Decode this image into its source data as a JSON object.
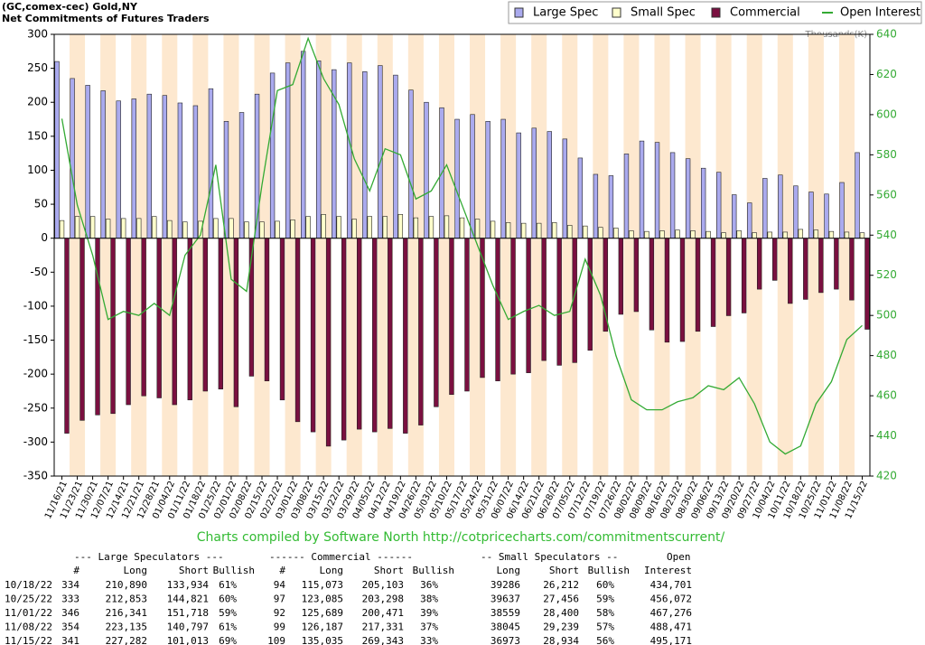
{
  "chart_data": {
    "type": "bar",
    "title": "(GC,comex-cec) Gold,NY",
    "subtitle": "Net Commitments of Futures Traders",
    "y2_label": "Thousands(K)",
    "credit": "Charts compiled by Software North  http://cotpricecharts.com/commitmentscurrent/",
    "legend": "top-right",
    "categories": [
      "11/16/21",
      "11/23/21",
      "11/30/21",
      "12/07/21",
      "12/14/21",
      "12/21/21",
      "12/28/21",
      "01/04/22",
      "01/11/22",
      "01/18/22",
      "01/25/22",
      "02/01/22",
      "02/08/22",
      "02/15/22",
      "02/22/22",
      "03/01/22",
      "03/08/22",
      "03/15/22",
      "03/22/22",
      "03/29/22",
      "04/05/22",
      "04/12/22",
      "04/19/22",
      "04/26/22",
      "05/03/22",
      "05/10/22",
      "05/17/22",
      "05/24/22",
      "05/31/22",
      "06/07/22",
      "06/14/22",
      "06/21/22",
      "06/28/22",
      "07/05/22",
      "07/12/22",
      "07/19/22",
      "07/26/22",
      "08/02/22",
      "08/09/22",
      "08/16/22",
      "08/23/22",
      "08/30/22",
      "09/06/22",
      "09/13/22",
      "09/20/22",
      "09/27/22",
      "10/04/22",
      "10/11/22",
      "10/18/22",
      "10/25/22",
      "11/01/22",
      "11/08/22",
      "11/15/22"
    ],
    "series": [
      {
        "name": "Large Spec",
        "type": "bar",
        "color": "#aaaaee",
        "values": [
          260,
          235,
          225,
          217,
          202,
          205,
          212,
          210,
          199,
          195,
          220,
          172,
          185,
          212,
          243,
          258,
          275,
          261,
          248,
          258,
          245,
          254,
          240,
          218,
          200,
          192,
          175,
          182,
          172,
          175,
          155,
          162,
          157,
          146,
          118,
          94,
          92,
          124,
          143,
          141,
          126,
          117,
          103,
          97,
          64,
          52,
          88,
          93,
          77,
          68,
          65,
          82,
          126
        ]
      },
      {
        "name": "Small Spec",
        "type": "bar",
        "color": "#ffffcc",
        "values": [
          26,
          32,
          32,
          28,
          29,
          29,
          32,
          26,
          24,
          25,
          29,
          29,
          24,
          24,
          25,
          27,
          32,
          35,
          32,
          28,
          32,
          32,
          35,
          30,
          32,
          33,
          30,
          28,
          25,
          23,
          22,
          22,
          23,
          19,
          18,
          16,
          15,
          11,
          10,
          11,
          12,
          11,
          10,
          8,
          11,
          8,
          9,
          9,
          13,
          12,
          10,
          9,
          8
        ]
      },
      {
        "name": "Commercial",
        "type": "bar",
        "color": "#7a1040",
        "values": [
          -287,
          -268,
          -260,
          -258,
          -245,
          -232,
          -235,
          -245,
          -238,
          -225,
          -222,
          -248,
          -203,
          -210,
          -238,
          -270,
          -285,
          -306,
          -297,
          -281,
          -285,
          -280,
          -287,
          -275,
          -248,
          -230,
          -225,
          -205,
          -210,
          -200,
          -198,
          -180,
          -187,
          -183,
          -165,
          -137,
          -112,
          -108,
          -135,
          -153,
          -152,
          -137,
          -130,
          -114,
          -110,
          -75,
          -62,
          -96,
          -90,
          -80,
          -75,
          -91,
          -134
        ]
      },
      {
        "name": "Open Interest",
        "type": "line",
        "axis": "y2",
        "color": "#33aa33",
        "values": [
          598,
          555,
          530,
          498,
          502,
          500,
          506,
          500,
          530,
          540,
          575,
          518,
          512,
          565,
          612,
          615,
          638,
          618,
          605,
          578,
          562,
          583,
          580,
          558,
          562,
          575,
          555,
          535,
          515,
          498,
          502,
          505,
          500,
          502,
          528,
          510,
          480,
          458,
          453,
          453,
          457,
          459,
          465,
          463,
          469,
          456,
          437,
          431,
          435,
          456,
          467,
          488,
          495
        ]
      }
    ],
    "ylim": [
      -350,
      300
    ],
    "yticks": [
      -350,
      -300,
      -250,
      -200,
      -150,
      -100,
      -50,
      0,
      50,
      100,
      150,
      200,
      250,
      300
    ],
    "y2lim": [
      420,
      640
    ],
    "y2ticks": [
      420,
      440,
      460,
      480,
      500,
      520,
      540,
      560,
      580,
      600,
      620,
      640
    ]
  },
  "table": {
    "group_headers": [
      "--- Large Speculators ---",
      "------ Commercial ------",
      "-- Small Speculators --",
      "Open"
    ],
    "columns": [
      "#",
      "Long",
      "Short",
      "Bullish",
      "#",
      "Long",
      "Short",
      "Bullish",
      "Long",
      "Short",
      "Bullish",
      "Interest"
    ],
    "rows": [
      [
        "10/18/22",
        "334",
        "210,890",
        "133,934",
        "61%",
        "94",
        "115,073",
        "205,103",
        "36%",
        "39286",
        "26,212",
        "60%",
        "434,701"
      ],
      [
        "10/25/22",
        "333",
        "212,853",
        "144,821",
        "60%",
        "97",
        "123,085",
        "203,298",
        "38%",
        "39637",
        "27,456",
        "59%",
        "456,072"
      ],
      [
        "11/01/22",
        "346",
        "216,341",
        "151,718",
        "59%",
        "92",
        "125,689",
        "200,471",
        "39%",
        "38559",
        "28,400",
        "58%",
        "467,276"
      ],
      [
        "11/08/22",
        "354",
        "223,135",
        "140,797",
        "61%",
        "99",
        "126,187",
        "217,331",
        "37%",
        "38045",
        "29,239",
        "57%",
        "488,471"
      ],
      [
        "11/15/22",
        "341",
        "227,282",
        "101,013",
        "69%",
        "109",
        "135,035",
        "269,343",
        "33%",
        "36973",
        "28,934",
        "56%",
        "495,171"
      ]
    ]
  }
}
